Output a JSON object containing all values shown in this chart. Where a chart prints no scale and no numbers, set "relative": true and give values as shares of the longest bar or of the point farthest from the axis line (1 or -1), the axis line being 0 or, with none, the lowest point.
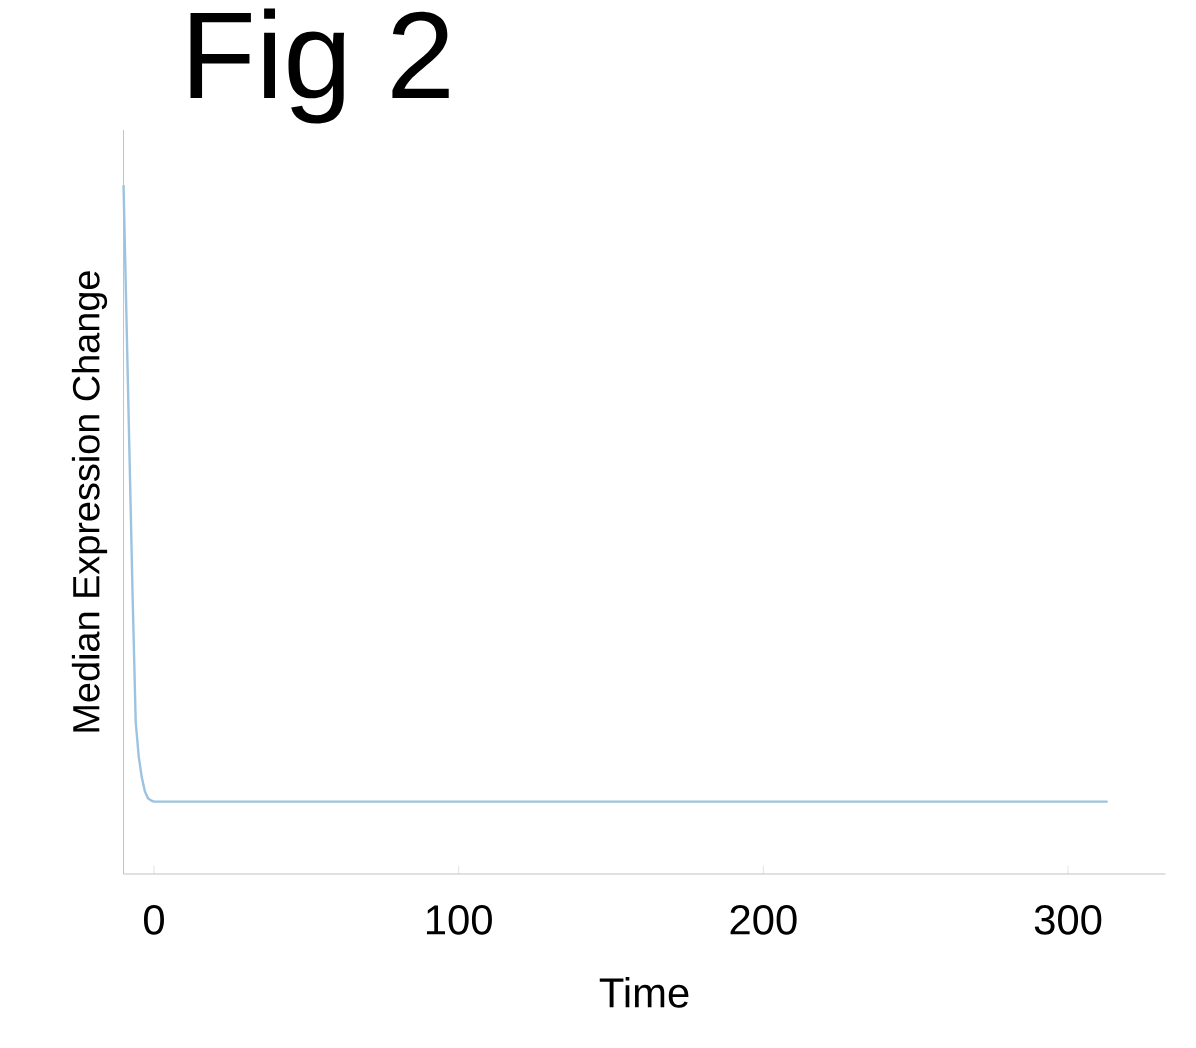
{
  "chart_data": {
    "type": "line",
    "title": "Fig 2",
    "xlabel": "Time",
    "ylabel": "Median Expression Change",
    "relative": true,
    "x": [
      -10,
      -9,
      -8,
      -7,
      -6,
      -5,
      -4,
      -3,
      -2,
      -1,
      0,
      313
    ],
    "series": [
      {
        "color": "#9cc3e0",
        "values": [
          1,
          0.8,
          0.6,
          0.4,
          0.22,
          0.17,
          0.14,
          0.12,
          0.11,
          0.107,
          0.105,
          0.105
        ]
      }
    ],
    "xlim": [
      -10,
      332
    ],
    "xticks": [
      0,
      100,
      200,
      300
    ],
    "line_style": "solid"
  }
}
